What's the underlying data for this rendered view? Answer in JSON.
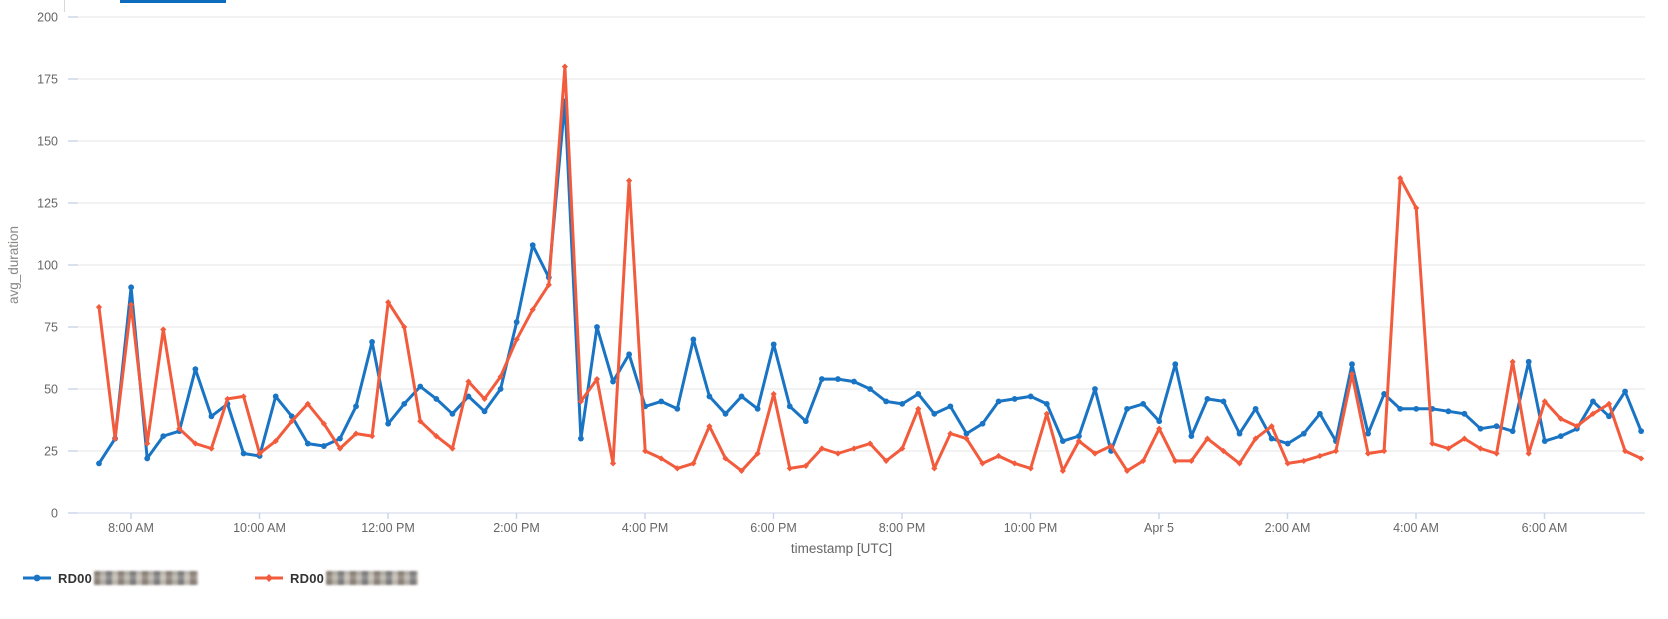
{
  "page": {
    "accent_color": "#0f6cbd",
    "background": "#ffffff"
  },
  "chart_data": {
    "type": "line",
    "title": "",
    "xlabel": "timestamp [UTC]",
    "ylabel": "avg_duration",
    "ylim": [
      0,
      200
    ],
    "y_ticks": [
      0,
      25,
      50,
      75,
      100,
      125,
      150,
      175,
      200
    ],
    "x_ticks": [
      "8:00 AM",
      "10:00 AM",
      "12:00 PM",
      "2:00 PM",
      "4:00 PM",
      "6:00 PM",
      "8:00 PM",
      "10:00 PM",
      "Apr 5",
      "2:00 AM",
      "4:00 AM",
      "6:00 AM"
    ],
    "x_interval_minutes": 15,
    "grid": "horizontal",
    "legend_position": "bottom-left",
    "axis_line_color": "#ccd6eb",
    "grid_color": "#e6e6e6",
    "label_color": "#666666",
    "series": [
      {
        "name": "RD00",
        "name_redacted": true,
        "color": "#1a74c4",
        "marker": "circle",
        "values": [
          20,
          30,
          91,
          22,
          31,
          33,
          58,
          39,
          44,
          24,
          23,
          47,
          39,
          28,
          27,
          30,
          43,
          69,
          36,
          44,
          51,
          46,
          40,
          47,
          41,
          50,
          77,
          108,
          95,
          166,
          30,
          75,
          53,
          64,
          43,
          45,
          42,
          70,
          47,
          40,
          47,
          42,
          68,
          43,
          37,
          54,
          54,
          53,
          50,
          45,
          44,
          48,
          40,
          43,
          32,
          36,
          45,
          46,
          47,
          44,
          29,
          31,
          50,
          25,
          42,
          44,
          37,
          60,
          31,
          46,
          45,
          32,
          42,
          30,
          28,
          32,
          40,
          29,
          60,
          32,
          48,
          42,
          42,
          42,
          41,
          40,
          34,
          35,
          33,
          61,
          29,
          31,
          34,
          45,
          39,
          49,
          33
        ]
      },
      {
        "name": "RD00",
        "name_redacted": true,
        "color": "#f25c3d",
        "marker": "diamond",
        "values": [
          83,
          30,
          84,
          28,
          74,
          34,
          28,
          26,
          46,
          47,
          24,
          29,
          37,
          44,
          36,
          26,
          32,
          31,
          85,
          75,
          37,
          31,
          26,
          53,
          46,
          55,
          70,
          82,
          92,
          180,
          45,
          54,
          20,
          134,
          25,
          22,
          18,
          20,
          35,
          22,
          17,
          24,
          48,
          18,
          19,
          26,
          24,
          26,
          28,
          21,
          26,
          42,
          18,
          32,
          30,
          20,
          23,
          20,
          18,
          40,
          17,
          29,
          24,
          27,
          17,
          21,
          34,
          21,
          21,
          30,
          25,
          20,
          30,
          35,
          20,
          21,
          23,
          25,
          56,
          24,
          25,
          135,
          123,
          28,
          26,
          30,
          26,
          24,
          61,
          24,
          45,
          38,
          35,
          40,
          44,
          25,
          22
        ]
      }
    ]
  },
  "legend": {
    "items": [
      {
        "label": "RD00",
        "redacted": true,
        "color": "#1a74c4",
        "marker": "circle"
      },
      {
        "label": "RD00",
        "redacted": true,
        "color": "#f25c3d",
        "marker": "diamond"
      }
    ]
  }
}
